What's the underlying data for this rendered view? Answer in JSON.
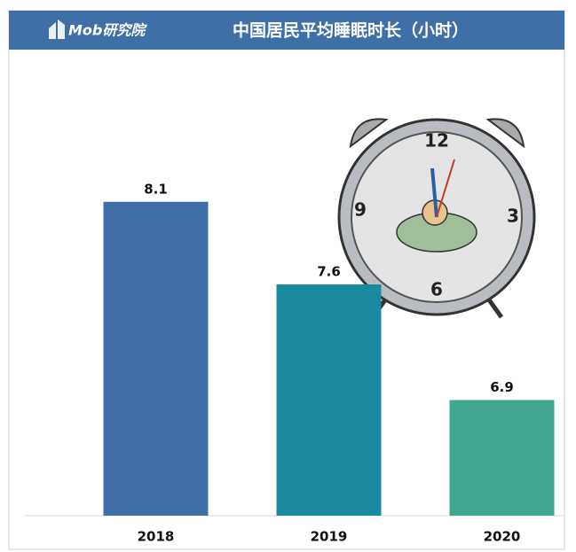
{
  "brand": "Mob研究院",
  "chart_data": {
    "type": "bar",
    "title": "中国居民平均睡眠时长（小时）",
    "categories": [
      "2018",
      "2019",
      "2020"
    ],
    "values": [
      8.1,
      7.6,
      6.9
    ],
    "colors": [
      "#3f6fa6",
      "#1a8a9f",
      "#40a690"
    ],
    "ylim": [
      6.2,
      9.0
    ]
  },
  "illustration": {
    "clock_numbers": [
      "12",
      "3",
      "6",
      "9"
    ]
  }
}
